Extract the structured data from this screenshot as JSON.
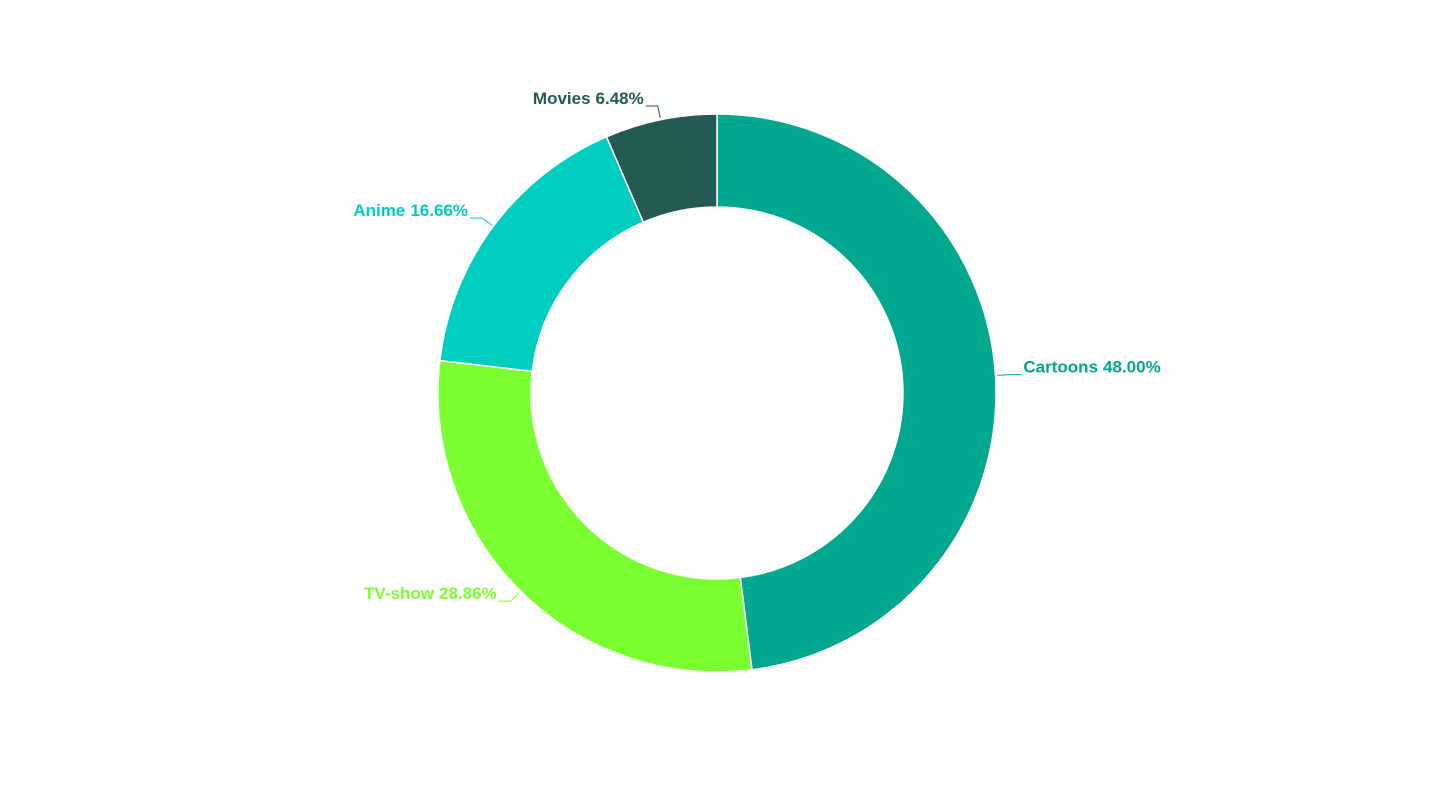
{
  "chart_data": {
    "type": "donut",
    "categories": [
      "Cartoons",
      "TV-show",
      "Anime",
      "Movies"
    ],
    "values": [
      48.0,
      28.86,
      16.66,
      6.48
    ],
    "value_labels": [
      "48.00%",
      "28.86%",
      "16.66%",
      "6.48%"
    ],
    "colors": [
      "#02a88e",
      "#7cff32",
      "#00cdc0",
      "#245a51"
    ]
  }
}
